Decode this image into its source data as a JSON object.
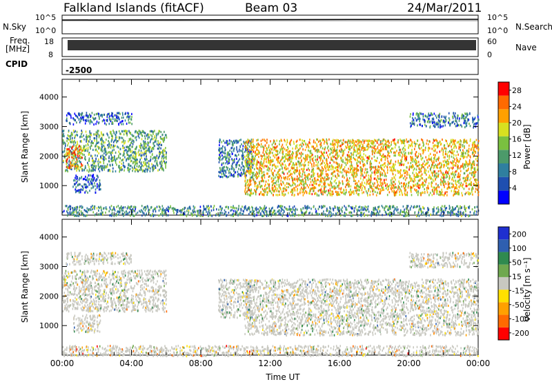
{
  "header": {
    "station": "Falkland Islands (fitACF)",
    "beam": "Beam 03",
    "date": "24/Mar/2011"
  },
  "labels": {
    "nsky": "N.Sky",
    "nsearch": "N.Search",
    "freq_line1": "Freq.",
    "freq_line2": "[MHz]",
    "nave": "Nave",
    "cpid": "CPID",
    "cpid_value": "-2500",
    "nsky_top": "10^5",
    "nsky_bottom": "10^0",
    "nsearch_top": "10^5",
    "nsearch_bottom": "10^0",
    "freq_top": "18",
    "freq_bottom": "8",
    "nave_top": "60",
    "nave_bottom": "0",
    "power_cbar_title": "Power [dB]",
    "velocity_cbar_title": "Velocity [m s⁻¹]"
  },
  "colors": {
    "power_scale": [
      "#0000ff",
      "#1f4fb0",
      "#2f7f9f",
      "#4c9a6a",
      "#7ac040",
      "#d8e020",
      "#ffa000",
      "#ff6a00",
      "#ff0000"
    ],
    "velocity_scale": [
      "#ff0000",
      "#ff6a00",
      "#ffa000",
      "#ffe000",
      "#c8c8c0",
      "#6fa84f",
      "#2f8a4f",
      "#2f5fb0",
      "#1f2fd0"
    ]
  },
  "chart_data": [
    {
      "type": "heatmap",
      "name": "power",
      "ylabel": "Slant Range [km]",
      "yticks": [
        1000,
        2000,
        3000,
        4000
      ],
      "ylim": [
        0,
        4600
      ],
      "xticks": [
        "00:00",
        "04:00",
        "08:00",
        "12:00",
        "16:00",
        "20:00",
        "00:00"
      ],
      "xlim_hours": [
        0,
        24
      ],
      "colorbar": {
        "title": "Power [dB]",
        "ticks": [
          4,
          8,
          12,
          16,
          20,
          24,
          28
        ],
        "range": [
          0,
          30
        ]
      },
      "echo_regions": [
        {
          "t0": 0.0,
          "t1": 6.0,
          "r0": 1500,
          "r1": 2900,
          "value": 12
        },
        {
          "t0": 0.2,
          "t1": 1.2,
          "r0": 1600,
          "r1": 2400,
          "value": 22
        },
        {
          "t0": 0.6,
          "t1": 2.2,
          "r0": 800,
          "r1": 1400,
          "value": 6
        },
        {
          "t0": 0.2,
          "t1": 4.0,
          "r0": 3100,
          "r1": 3500,
          "value": 7
        },
        {
          "t0": 9.0,
          "t1": 11.0,
          "r0": 1300,
          "r1": 2600,
          "value": 8
        },
        {
          "t0": 10.5,
          "t1": 24.0,
          "r0": 700,
          "r1": 2600,
          "value": 20
        },
        {
          "t0": 20.0,
          "t1": 24.0,
          "r0": 3000,
          "r1": 3500,
          "value": 8
        },
        {
          "t0": 0.0,
          "t1": 24.0,
          "r0": 0,
          "r1": 350,
          "value": 10
        }
      ]
    },
    {
      "type": "heatmap",
      "name": "velocity",
      "ylabel": "Slant Range [km]",
      "yticks": [
        1000,
        2000,
        3000,
        4000
      ],
      "ylim": [
        0,
        4600
      ],
      "xticks": [
        "00:00",
        "04:00",
        "08:00",
        "12:00",
        "16:00",
        "20:00",
        "00:00"
      ],
      "xlabel": "Time UT",
      "xlim_hours": [
        0,
        24
      ],
      "colorbar": {
        "title": "Velocity [m s⁻¹]",
        "ticks": [
          200,
          100,
          50,
          15,
          -15,
          -50,
          -100,
          -200
        ]
      },
      "echo_regions": [
        {
          "t0": 0.0,
          "t1": 6.0,
          "r0": 1500,
          "r1": 2900,
          "value": 0
        },
        {
          "t0": 0.6,
          "t1": 2.2,
          "r0": 800,
          "r1": 1400,
          "value": 0
        },
        {
          "t0": 0.2,
          "t1": 4.0,
          "r0": 3100,
          "r1": 3500,
          "value": 0
        },
        {
          "t0": 9.0,
          "t1": 11.0,
          "r0": 1300,
          "r1": 2600,
          "value": 40
        },
        {
          "t0": 10.5,
          "t1": 24.0,
          "r0": 700,
          "r1": 2600,
          "value": 0
        },
        {
          "t0": 20.0,
          "t1": 24.0,
          "r0": 3000,
          "r1": 3500,
          "value": 0
        },
        {
          "t0": 0.0,
          "t1": 24.0,
          "r0": 0,
          "r1": 350,
          "value": -60
        }
      ]
    }
  ]
}
